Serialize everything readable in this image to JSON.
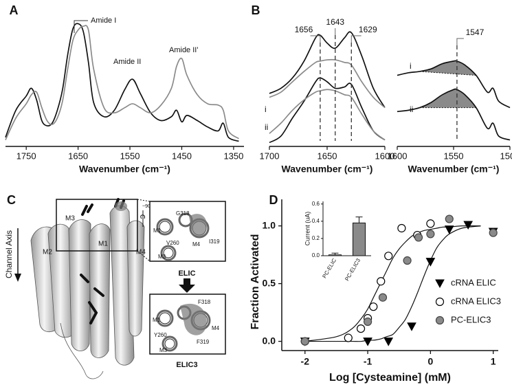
{
  "chart_data": [
    {
      "type": "line",
      "panel": "A",
      "xlabel": "Wavenumber (cm⁻¹)",
      "xlim": [
        1790,
        1330
      ],
      "ylim": [
        0,
        1
      ],
      "xticks": [
        1750,
        1650,
        1550,
        1450,
        1350
      ],
      "annotations": [
        "Amide I",
        "Amide II",
        "Amide II'"
      ],
      "x": [
        1790,
        1770,
        1750,
        1740,
        1730,
        1720,
        1710,
        1700,
        1690,
        1680,
        1670,
        1660,
        1650,
        1640,
        1630,
        1620,
        1600,
        1580,
        1560,
        1545,
        1530,
        1510,
        1490,
        1470,
        1460,
        1450,
        1440,
        1420,
        1400,
        1380,
        1370,
        1360,
        1340
      ],
      "series": [
        {
          "color": "#111111",
          "values": [
            0.07,
            0.28,
            0.39,
            0.45,
            0.36,
            0.2,
            0.16,
            0.18,
            0.28,
            0.44,
            0.71,
            0.91,
            0.95,
            0.89,
            0.65,
            0.34,
            0.23,
            0.28,
            0.44,
            0.52,
            0.41,
            0.26,
            0.2,
            0.23,
            0.28,
            0.19,
            0.24,
            0.2,
            0.15,
            0.12,
            0.18,
            0.07,
            0.04
          ]
        },
        {
          "color": "#8a8a8a",
          "values": [
            0.05,
            0.22,
            0.33,
            0.4,
            0.42,
            0.3,
            0.2,
            0.17,
            0.22,
            0.35,
            0.6,
            0.82,
            0.9,
            0.93,
            0.9,
            0.6,
            0.3,
            0.26,
            0.3,
            0.33,
            0.3,
            0.26,
            0.32,
            0.45,
            0.62,
            0.68,
            0.55,
            0.4,
            0.33,
            0.32,
            0.28,
            0.12,
            0.06
          ]
        }
      ]
    },
    {
      "type": "line",
      "panel": "B",
      "xlabel": "Wavenumber (cm⁻¹)",
      "xlim": [
        1700,
        1600
      ],
      "ylim": [
        0,
        1
      ],
      "xticks": [
        1700,
        1650,
        1600
      ],
      "markers": [
        1656,
        1643,
        1629
      ],
      "curve_labels": [
        "i",
        "ii"
      ],
      "x": [
        1700,
        1690,
        1680,
        1670,
        1660,
        1656,
        1650,
        1643,
        1635,
        1629,
        1620,
        1610,
        1600
      ],
      "series": [
        {
          "color": "#111111",
          "values": [
            0.41,
            0.45,
            0.53,
            0.66,
            0.84,
            0.86,
            0.8,
            0.76,
            0.84,
            0.88,
            0.7,
            0.45,
            0.3
          ]
        },
        {
          "color": "#8a8a8a",
          "values": [
            0.38,
            0.42,
            0.5,
            0.58,
            0.65,
            0.66,
            0.67,
            0.67,
            0.65,
            0.63,
            0.5,
            0.38,
            0.3
          ]
        },
        {
          "color": "#111111",
          "values": [
            0.03,
            0.08,
            0.22,
            0.35,
            0.5,
            0.53,
            0.5,
            0.45,
            0.46,
            0.48,
            0.3,
            0.12,
            0.05
          ]
        },
        {
          "color": "#8a8a8a",
          "values": [
            0.1,
            0.18,
            0.28,
            0.36,
            0.42,
            0.43,
            0.44,
            0.43,
            0.4,
            0.38,
            0.25,
            0.12,
            0.05
          ]
        }
      ]
    },
    {
      "type": "line",
      "xlabel": "Wavenumber (cm⁻¹)",
      "xlim": [
        1600,
        1500
      ],
      "ylim": [
        0,
        1
      ],
      "xticks": [
        1600,
        1550,
        1500
      ],
      "markers": [
        1547
      ],
      "curve_labels": [
        "i",
        "ii"
      ],
      "x": [
        1600,
        1590,
        1580,
        1570,
        1560,
        1550,
        1547,
        1540,
        1530,
        1520,
        1515,
        1510,
        1500
      ],
      "series": [
        {
          "color": "#111111",
          "values": [
            0.55,
            0.57,
            0.58,
            0.6,
            0.64,
            0.66,
            0.66,
            0.63,
            0.55,
            0.42,
            0.45,
            0.35,
            0.3
          ]
        },
        {
          "color": "#111111",
          "values": [
            0.27,
            0.28,
            0.3,
            0.34,
            0.4,
            0.44,
            0.44,
            0.4,
            0.3,
            0.14,
            0.18,
            0.08,
            0.05
          ]
        }
      ]
    },
    {
      "type": "scatter",
      "panel": "D",
      "xlabel": "Log [Cysteamine] (mM)",
      "ylabel": "Fraction Activated",
      "xlim": [
        -2.37,
        1.08
      ],
      "ylim": [
        -0.08,
        1.23
      ],
      "xticks": [
        -2,
        -1,
        0,
        1
      ],
      "yticks": [
        {
          "value": 0,
          "label": "0.0"
        },
        {
          "value": 0.5,
          "label": "0.5"
        },
        {
          "value": 1,
          "label": "1.0"
        }
      ],
      "legend": "lower right",
      "grid": false,
      "fit_x": [
        -2,
        -1.5,
        -1.25,
        -1.1,
        -1,
        -0.9,
        -0.8,
        -0.7,
        -0.6,
        -0.5,
        -0.4,
        -0.3,
        -0.2,
        -0.1,
        0,
        0.1,
        0.2,
        0.3,
        0.5,
        0.8
      ],
      "series": [
        {
          "name": "cRNA ELIC",
          "marker": "triangle",
          "color": "#000000",
          "fill": "#000000",
          "x": [
            -2,
            -1,
            -0.67,
            -0.3,
            0,
            0.3,
            0.6,
            1
          ],
          "values": [
            0,
            0,
            0,
            0.13,
            0.69,
            0.97,
            1.01,
            0.95
          ],
          "fit": [
            0,
            0,
            0,
            0,
            0.01,
            0.01,
            0.02,
            0.04,
            0.06,
            0.12,
            0.19,
            0.3,
            0.43,
            0.57,
            0.7,
            0.81,
            0.88,
            0.93,
            0.98,
            1
          ]
        },
        {
          "name": "cRNA ELIC3",
          "marker": "circle",
          "color": "#000000",
          "fill": "#ffffff",
          "x": [
            -2,
            -1.31,
            -1.11,
            -1,
            -0.91,
            -0.79,
            -0.67,
            -0.46,
            -0.21,
            0
          ],
          "values": [
            0,
            0.03,
            0.11,
            0.2,
            0.3,
            0.52,
            0.74,
            0.98,
            0.92,
            1.02
          ],
          "fit": [
            0,
            0.04,
            0.11,
            0.2,
            0.28,
            0.39,
            0.5,
            0.61,
            0.72,
            0.8,
            0.86,
            0.91,
            0.94,
            0.96,
            0.97,
            0.98,
            0.99,
            0.99,
            1,
            1
          ]
        },
        {
          "name": "PC-ELIC3",
          "marker": "circle",
          "color": "#444444",
          "fill": "#8a8a8a",
          "x": [
            -2,
            -1,
            -0.76,
            -0.37,
            -0.19,
            0,
            0.3,
            1
          ],
          "values": [
            0,
            0.17,
            0.38,
            0.7,
            0.9,
            0.93,
            1.06,
            0.94
          ]
        }
      ]
    },
    {
      "type": "bar",
      "ylabel": "Current (uA)",
      "ylim": [
        0,
        0.63
      ],
      "yticks": [
        {
          "value": 0,
          "label": "0.0"
        },
        {
          "value": 0.2,
          "label": "0.2"
        },
        {
          "value": 0.4,
          "label": "0.4"
        },
        {
          "value": 0.6,
          "label": "0.6"
        }
      ],
      "categories": [
        "PC-ELIC",
        "PC-ELIC3"
      ],
      "values": [
        0.01,
        0.38
      ],
      "errors": [
        0.02,
        0.07
      ],
      "colors": [
        "#ffffff",
        "#8a8a8a"
      ]
    }
  ],
  "panel_c": {
    "label": "C",
    "axis_label": "Channel Axis",
    "helices": [
      "M3",
      "M1",
      "M2",
      "M4"
    ],
    "rotation": "~90°",
    "elic": {
      "title": "ELIC",
      "labels": [
        "G318",
        "M1",
        "V260",
        "M4",
        "I319",
        "M3"
      ]
    },
    "elic3": {
      "title": "ELIC3",
      "labels": [
        "F318",
        "M1",
        "Y260",
        "M4",
        "F319",
        "M3"
      ]
    }
  }
}
